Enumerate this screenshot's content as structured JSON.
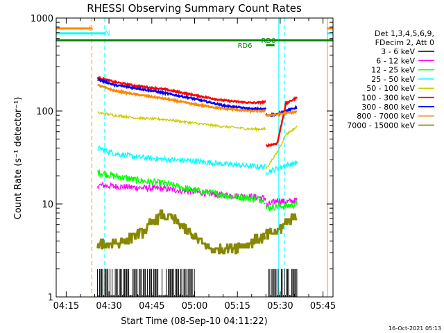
{
  "chart_data": {
    "type": "line",
    "title": "RHESSI Observing Summary Count Rates",
    "xlabel": "Start Time (08-Sep-10 04:11:22)",
    "ylabel": "Count Rate (s⁻¹ detector⁻¹)",
    "y_scale": "log",
    "ylim": [
      1,
      1000
    ],
    "xlim_minutes": [
      251.5,
      348.5
    ],
    "x_ticks": [
      "04:15",
      "04:30",
      "04:45",
      "05:00",
      "05:15",
      "05:30",
      "05:45"
    ],
    "y_ticks": [
      "1",
      "10",
      "100",
      "1000"
    ],
    "grid": false,
    "legend_position": "top-right",
    "legend_header": [
      "Det 1,3,4,5,6,9,",
      "FDecim 2, Att 0"
    ],
    "series": [
      {
        "name": "3 - 6 keV",
        "color": "#000000",
        "segments": [
          {
            "x": [
              266,
              284,
              292,
              300
            ],
            "y": [
              1.5,
              1.5,
              1.5,
              1.5
            ]
          },
          {
            "x": [
              326,
              336
            ],
            "y": [
              1.5,
              1.5
            ]
          }
        ]
      },
      {
        "name": "6 - 12 keV",
        "color": "#ff00ff",
        "segments": [
          {
            "x": [
              266,
              272,
              280,
              290,
              300,
              310,
              320,
              325
            ],
            "y": [
              16,
              15.5,
              15,
              14.5,
              13.5,
              12.5,
              12,
              11.5
            ]
          },
          {
            "x": [
              325,
              329,
              332,
              336
            ],
            "y": [
              9.5,
              11,
              10.5,
              11
            ]
          }
        ]
      },
      {
        "name": "12 - 25 keV",
        "color": "#00ff00",
        "segments": [
          {
            "x": [
              266,
              272,
              280,
              290,
              300,
              310,
              320,
              325
            ],
            "y": [
              22,
              20,
              18,
              16.5,
              14,
              12.5,
              11.5,
              11
            ]
          },
          {
            "x": [
              325,
              329,
              332,
              336
            ],
            "y": [
              9,
              9.5,
              9.5,
              10
            ]
          }
        ]
      },
      {
        "name": "25 - 50 keV",
        "color": "#00ffff",
        "segments": [
          {
            "x": [
              266,
              272,
              280,
              290,
              300,
              310,
              320,
              325
            ],
            "y": [
              40,
              35,
              32,
              30,
              29,
              27,
              25.5,
              25
            ]
          },
          {
            "x": [
              325,
              329,
              332,
              336
            ],
            "y": [
              22,
              24,
              26,
              28
            ]
          }
        ]
      },
      {
        "name": "50 - 100 keV",
        "color": "#cccc00",
        "segments": [
          {
            "x": [
              266,
              272,
              280,
              290,
              300,
              310,
              320,
              325
            ],
            "y": [
              96,
              90,
              84,
              81,
              74,
              68,
              64,
              64
            ]
          },
          {
            "x": [
              325,
              329,
              332,
              336
            ],
            "y": [
              24,
              36,
              56,
              68
            ]
          }
        ]
      },
      {
        "name": "100 - 300 keV",
        "color": "#ff0000",
        "segments": [
          {
            "x": [
              266,
              272,
              280,
              290,
              300,
              310,
              320,
              325
            ],
            "y": [
              230,
              205,
              185,
              170,
              148,
              130,
              122,
              125
            ]
          },
          {
            "x": [
              325,
              329,
              332,
              336
            ],
            "y": [
              42,
              45,
              120,
              140
            ]
          }
        ]
      },
      {
        "name": "300 - 800 keV",
        "color": "#0000ff",
        "segments": [
          {
            "x": [
              266,
              272,
              280,
              290,
              300,
              310,
              320,
              325
            ],
            "y": [
              220,
              190,
              175,
              155,
              135,
              115,
              105,
              105
            ]
          },
          {
            "x": [
              325,
              329,
              332,
              336
            ],
            "y": [
              90,
              92,
              100,
              110
            ]
          }
        ]
      },
      {
        "name": "800 - 7000 keV",
        "color": "#ff8800",
        "segments": [
          {
            "x": [
              266,
              272,
              280,
              290,
              300,
              310,
              320,
              325
            ],
            "y": [
              190,
              165,
              150,
              135,
              118,
              106,
              100,
              100
            ]
          },
          {
            "x": [
              325,
              329,
              332,
              336
            ],
            "y": [
              90,
              92,
              95,
              98
            ]
          }
        ]
      },
      {
        "name": "7000 - 15000 keV",
        "color": "#888800",
        "segments": [
          {
            "x": [
              266,
              275,
              282,
              288,
              292,
              298,
              306,
              316,
              322,
              325
            ],
            "y": [
              3.5,
              4.0,
              5.0,
              7.5,
              7.0,
              5.0,
              3.2,
              3.5,
              4.2,
              4.2
            ]
          },
          {
            "x": [
              325,
              329,
              332,
              336
            ],
            "y": [
              4.5,
              5,
              6.5,
              7.5
            ]
          }
        ]
      }
    ],
    "flag_lines": [
      {
        "label": "S",
        "color": "#ff8800",
        "x_start": 251.5,
        "x_end": 264
      },
      {
        "label": "N",
        "color": "#00ffff",
        "x_start": 251.5,
        "x_end": 268.5
      },
      {
        "label": "RD0",
        "color": "#008800",
        "x_start": 251.5,
        "x_end": 348.5
      },
      {
        "label": "RD6",
        "color": "#008800",
        "x_start": 325,
        "x_end": 328
      }
    ],
    "vertical_markers": [
      {
        "x": 251.5,
        "color": "#00ffff",
        "style": "solid"
      },
      {
        "x": 264,
        "color": "#ff8800",
        "style": "dashed"
      },
      {
        "x": 268.5,
        "color": "#00ffff",
        "style": "dashed"
      },
      {
        "x": 329.5,
        "color": "#00ffff",
        "style": "solid"
      },
      {
        "x": 331.5,
        "color": "#00ffff",
        "style": "dashed"
      },
      {
        "x": 346.5,
        "color": "#ff8800",
        "style": "solid"
      },
      {
        "x": 348.5,
        "color": "#00ffff",
        "style": "dashed"
      }
    ],
    "timestamp": "16-Oct-2021 05:13"
  }
}
